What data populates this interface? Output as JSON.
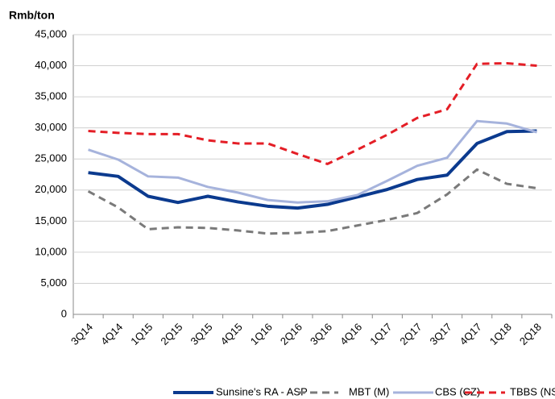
{
  "chart_data": {
    "type": "line",
    "title": "Rmb/ton",
    "categories": [
      "3Q14",
      "4Q14",
      "1Q15",
      "2Q15",
      "3Q15",
      "4Q15",
      "1Q16",
      "2Q16",
      "3Q16",
      "4Q16",
      "1Q17",
      "2Q17",
      "3Q17",
      "4Q17",
      "1Q18",
      "2Q18"
    ],
    "series": [
      {
        "name": "Sunsine's RA - ASP",
        "color": "#0b3a8e",
        "style": "solid",
        "width": 4,
        "values": [
          22800,
          22200,
          19000,
          18000,
          19000,
          18100,
          17400,
          17100,
          17700,
          18900,
          20100,
          21700,
          22400,
          27500,
          29400,
          29500
        ]
      },
      {
        "name": "MBT (M)",
        "color": "#7a7a7a",
        "style": "dashed",
        "width": 3,
        "values": [
          19800,
          17200,
          13700,
          14000,
          13900,
          13500,
          13000,
          13100,
          13400,
          14300,
          15200,
          16300,
          19300,
          23300,
          21000,
          20300
        ]
      },
      {
        "name": "CBS (CZ)",
        "color": "#a6b3dc",
        "style": "solid",
        "width": 3,
        "values": [
          26500,
          24900,
          22200,
          22000,
          20500,
          19600,
          18400,
          18000,
          18200,
          19200,
          21500,
          23900,
          25200,
          31100,
          30700,
          29300
        ]
      },
      {
        "name": "TBBS (NS)",
        "color": "#e41e26",
        "style": "dashed",
        "width": 3,
        "values": [
          29500,
          29200,
          29000,
          29000,
          28000,
          27500,
          27500,
          25800,
          24200,
          26500,
          28900,
          31600,
          33000,
          40300,
          40400,
          40000
        ]
      }
    ],
    "ylim": [
      0,
      45000
    ],
    "yticks": [
      0,
      {
        "value": 5000,
        "label": "5,000"
      },
      {
        "value": 10000,
        "label": "10,000"
      },
      {
        "value": 15000,
        "label": "15,000"
      },
      {
        "value": 20000,
        "label": "20,000"
      },
      {
        "value": 25000,
        "label": "25,000"
      },
      {
        "value": 30000,
        "label": "30,000"
      },
      {
        "value": 35000,
        "label": "35,000"
      },
      {
        "value": 40000,
        "label": "40,000"
      },
      {
        "value": 45000,
        "label": "45,000"
      }
    ],
    "grid": true,
    "legend": "bottom"
  }
}
